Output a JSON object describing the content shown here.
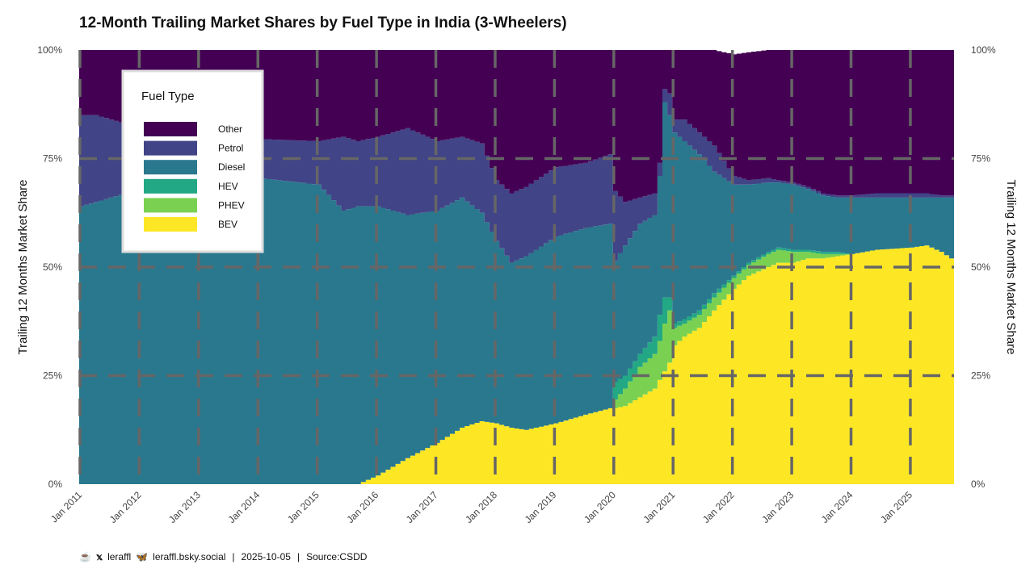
{
  "title": "12-Month Trailing Market Shares by Fuel Type in India (3-Wheelers)",
  "footer": {
    "handle1": "leraffl",
    "handle2": "leraffl.bsky.social",
    "date": "2025-10-05",
    "source": "Source:CSDD",
    "icons": [
      "mug-icon",
      "x-logo-icon",
      "butterfly-icon"
    ]
  },
  "chart_data": {
    "type": "area",
    "stacked": true,
    "title": "12-Month Trailing Market Shares by Fuel Type in India (3-Wheelers)",
    "ylabel": "Trailing 12 Months Market Share",
    "ylabel_right": "Trailing 12 Months Market Share",
    "ylim": [
      0,
      100
    ],
    "y_ticks": [
      "0%",
      "25%",
      "50%",
      "75%",
      "100%"
    ],
    "x_ticks": [
      "Jan 2011",
      "Jan 2012",
      "Jan 2013",
      "Jan 2014",
      "Jan 2015",
      "Jan 2016",
      "Jan 2017",
      "Jan 2018",
      "Jan 2019",
      "Jan 2020",
      "Jan 2021",
      "Jan 2022",
      "Jan 2023",
      "Jan 2024",
      "Jan 2025"
    ],
    "x_range": [
      "2011-01",
      "2025-09"
    ],
    "grid": true,
    "legend": {
      "title": "Fuel Type",
      "position": "top-left",
      "entries": [
        "Other",
        "Petrol",
        "Diesel",
        "HEV",
        "PHEV",
        "BEV"
      ]
    },
    "colors": {
      "BEV": "#fde725",
      "PHEV": "#7ad151",
      "HEV": "#22a884",
      "Diesel": "#2a788e",
      "Petrol": "#414487",
      "Other": "#440154"
    },
    "keyframes_x": [
      "2011-01",
      "2011-04",
      "2012-01",
      "2013-01",
      "2014-01",
      "2015-01",
      "2015-06",
      "2015-09",
      "2016-01",
      "2016-07",
      "2017-01",
      "2017-06",
      "2017-10",
      "2018-01",
      "2018-04",
      "2018-07",
      "2019-01",
      "2019-07",
      "2019-12",
      "2020-01",
      "2020-03",
      "2020-06",
      "2020-09",
      "2020-10",
      "2020-11",
      "2020-12",
      "2021-01",
      "2021-03",
      "2021-06",
      "2021-09",
      "2022-01",
      "2022-04",
      "2022-08",
      "2022-10",
      "2023-01",
      "2023-04",
      "2023-07",
      "2023-10",
      "2024-01",
      "2024-06",
      "2025-01",
      "2025-04",
      "2025-07",
      "2025-09"
    ],
    "series": [
      {
        "name": "BEV",
        "values": [
          0,
          0,
          0,
          0,
          0,
          0,
          0,
          0,
          2,
          6,
          9.5,
          13,
          14.5,
          14,
          13,
          12.5,
          14,
          16,
          17.5,
          17.5,
          18,
          20,
          22,
          24,
          26,
          28,
          32,
          34,
          36,
          40,
          45,
          48,
          50,
          51,
          51,
          52,
          52,
          52.5,
          53,
          54,
          54.5,
          55,
          53.5,
          52
        ]
      },
      {
        "name": "PHEV",
        "values": [
          0,
          0,
          0,
          0,
          0,
          0,
          0,
          0,
          0,
          0,
          0,
          0,
          0,
          0,
          0,
          0,
          0,
          0,
          0,
          2,
          4,
          7,
          8,
          9,
          11,
          12,
          4,
          3,
          3,
          3,
          2.5,
          2.5,
          3,
          3,
          2.5,
          1.5,
          1,
          0.5,
          0,
          0,
          0,
          0,
          0,
          0
        ]
      },
      {
        "name": "HEV",
        "values": [
          0,
          0,
          0,
          0,
          0,
          0,
          0,
          0,
          0,
          0,
          0,
          0,
          0,
          0,
          0,
          0,
          0,
          0,
          0,
          4,
          3,
          3,
          4,
          6,
          6,
          3,
          1,
          1,
          1,
          1,
          0.5,
          0.5,
          0.5,
          0.5,
          0.5,
          0.5,
          0.5,
          0.5,
          0,
          0,
          0,
          0,
          0,
          0
        ]
      },
      {
        "name": "Diesel",
        "values": [
          64,
          65,
          68,
          69,
          70.5,
          69,
          63,
          64,
          62,
          56,
          53.5,
          53,
          48,
          42,
          38,
          40,
          43,
          43,
          42.5,
          28,
          30,
          30,
          28,
          32,
          45,
          42,
          44,
          41,
          36,
          28,
          21,
          18,
          16,
          15,
          15,
          14,
          13,
          12.5,
          13,
          12,
          11.5,
          11,
          12.5,
          14
        ]
      },
      {
        "name": "Petrol",
        "values": [
          21,
          20,
          14,
          12,
          9,
          10,
          17,
          15,
          16,
          20,
          16,
          14,
          16,
          14,
          16,
          16,
          16,
          15,
          16,
          16,
          10,
          6,
          5,
          3,
          3,
          5,
          3,
          5,
          5,
          6,
          2,
          1,
          1,
          0.5,
          0.5,
          0.5,
          0.5,
          0.5,
          0.5,
          1,
          1,
          1,
          0.5,
          0.5
        ]
      },
      {
        "name": "Other",
        "values": [
          15,
          15,
          18,
          19,
          20.5,
          21,
          20,
          21,
          20,
          18,
          21,
          20,
          21.5,
          30,
          33,
          31.5,
          27,
          26,
          24,
          32.5,
          35,
          34,
          33,
          26,
          9,
          10,
          16,
          16,
          19,
          22,
          28,
          29.5,
          29.5,
          30,
          30.5,
          31.5,
          33,
          33.5,
          33.5,
          33,
          33,
          33,
          33.5,
          33.5
        ]
      }
    ]
  }
}
